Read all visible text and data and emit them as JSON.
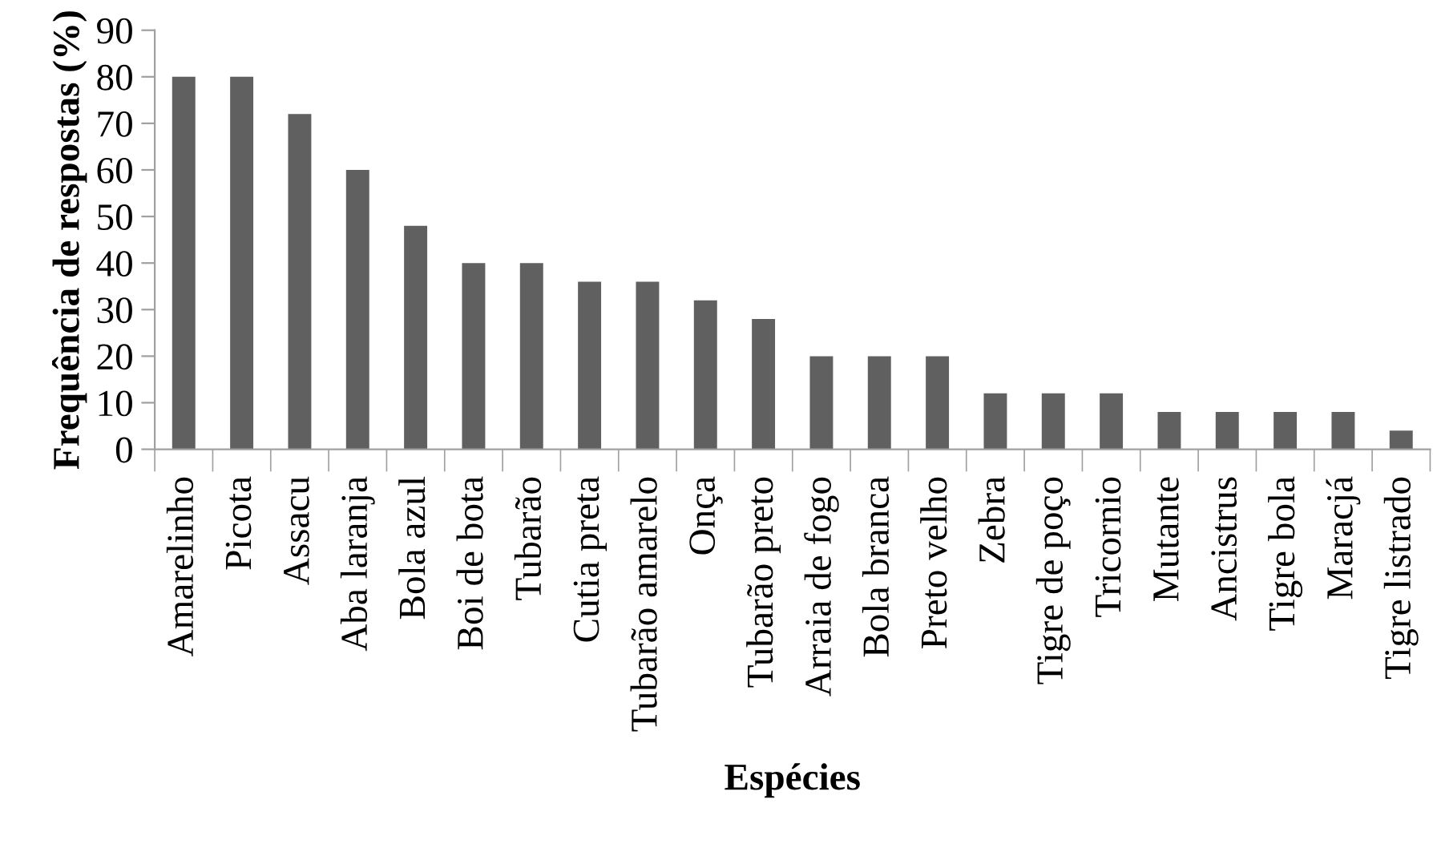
{
  "chart_data": {
    "type": "bar",
    "xlabel": "Espécies",
    "ylabel": "Frequência de respostas (%)",
    "categories": [
      "Amarelinho",
      "Picota",
      "Assacu",
      "Aba laranja",
      "Bola azul",
      "Boi de bota",
      "Tubarão",
      "Cutia preta",
      "Tubarão amarelo",
      "Onça",
      "Tubarão preto",
      "Arraia de fogo",
      "Bola branca",
      "Preto velho",
      "Zebra",
      "Tigre de poço",
      "Tricornio",
      "Mutante",
      "Ancistrus",
      "Tigre bola",
      "Maracjá",
      "Tigre listrado"
    ],
    "values": [
      80,
      80,
      72,
      60,
      48,
      40,
      40,
      36,
      36,
      32,
      28,
      20,
      20,
      20,
      12,
      12,
      12,
      8,
      8,
      8,
      8,
      4
    ],
    "color": "#606060",
    "ylim": [
      0,
      90
    ],
    "yticks": [
      0,
      10,
      20,
      30,
      40,
      50,
      60,
      70,
      80,
      90
    ],
    "grid": false,
    "legend": false
  }
}
